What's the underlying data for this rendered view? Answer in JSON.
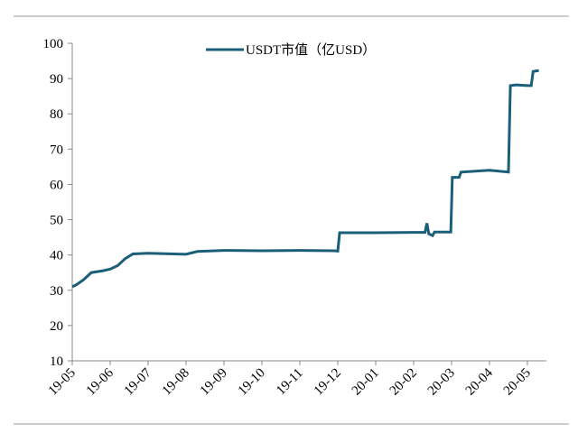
{
  "chart_data": {
    "type": "line",
    "series": [
      {
        "name": "USDT市值（亿USD）",
        "color": "#1b5e78",
        "x": [
          0,
          0.1,
          0.3,
          0.5,
          0.8,
          1,
          1.2,
          1.4,
          1.6,
          2,
          3,
          3.3,
          4,
          5,
          6,
          6.9,
          7,
          7.05,
          8,
          9,
          9.3,
          9.35,
          9.4,
          9.5,
          9.55,
          9.98,
          10.02,
          10.2,
          10.25,
          11,
          11.5,
          11.55,
          11.7,
          12,
          12.1,
          12.15,
          12.3
        ],
        "values": [
          31,
          31.5,
          33,
          35,
          35.5,
          36,
          37,
          39,
          40.3,
          40.5,
          40.2,
          41,
          41.3,
          41.2,
          41.3,
          41.2,
          41.1,
          46.3,
          46.3,
          46.4,
          46.4,
          49,
          46,
          45.5,
          46.5,
          46.5,
          62,
          62,
          63.5,
          64,
          63.5,
          88,
          88.2,
          88,
          88,
          92,
          92.3
        ]
      }
    ],
    "xlim": [
      0,
      12.5
    ],
    "xticks": [
      {
        "value": 0,
        "label": "19-05"
      },
      {
        "value": 1,
        "label": "19-06"
      },
      {
        "value": 2,
        "label": "19-07"
      },
      {
        "value": 3,
        "label": "19-08"
      },
      {
        "value": 4,
        "label": "19-09"
      },
      {
        "value": 5,
        "label": "19-10"
      },
      {
        "value": 6,
        "label": "19-11"
      },
      {
        "value": 7,
        "label": "19-12"
      },
      {
        "value": 8,
        "label": "20-01"
      },
      {
        "value": 9,
        "label": "20-02"
      },
      {
        "value": 10,
        "label": "20-03"
      },
      {
        "value": 11,
        "label": "20-04"
      },
      {
        "value": 12,
        "label": "20-05"
      }
    ],
    "ylim": [
      10,
      100
    ],
    "yticks": [
      10,
      20,
      30,
      40,
      50,
      60,
      70,
      80,
      90,
      100
    ],
    "grid": false,
    "legend": "top"
  }
}
